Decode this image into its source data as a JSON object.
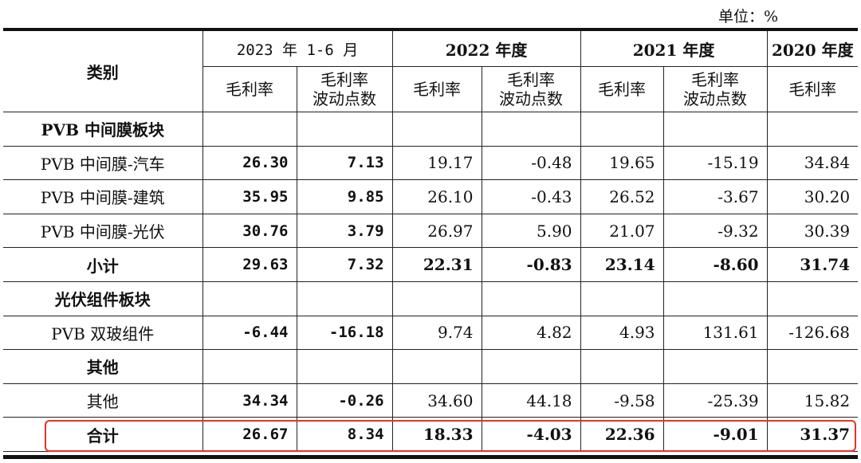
{
  "unit_label": "单位：%",
  "header": {
    "category": "类别",
    "periods": [
      "2023 年 1-6 月",
      "2022 年度",
      "2021 年度",
      "2020 年度"
    ],
    "gross_margin": "毛利率",
    "fluctuation": "毛利率\n波动点数"
  },
  "rows": {
    "r0": {
      "label": "PVB 中间膜板块"
    },
    "r1": {
      "label": "PVB 中间膜-汽车",
      "v": [
        "26.30",
        "7.13",
        "19.17",
        "-0.48",
        "19.65",
        "-15.19",
        "34.84"
      ]
    },
    "r2": {
      "label": "PVB 中间膜-建筑",
      "v": [
        "35.95",
        "9.85",
        "26.10",
        "-0.43",
        "26.52",
        "-3.67",
        "30.20"
      ]
    },
    "r3": {
      "label": "PVB 中间膜-光伏",
      "v": [
        "30.76",
        "3.79",
        "26.97",
        "5.90",
        "21.07",
        "-9.32",
        "30.39"
      ]
    },
    "r4": {
      "label": "小计",
      "v": [
        "29.63",
        "7.32",
        "22.31",
        "-0.83",
        "23.14",
        "-8.60",
        "31.74"
      ]
    },
    "r5": {
      "label": "光伏组件板块"
    },
    "r6": {
      "label": "PVB 双玻组件",
      "v": [
        "-6.44",
        "-16.18",
        "9.74",
        "4.82",
        "4.93",
        "131.61",
        "-126.68"
      ]
    },
    "r7": {
      "label": "其他"
    },
    "r8": {
      "label": "其他",
      "v": [
        "34.34",
        "-0.26",
        "34.60",
        "44.18",
        "-9.58",
        "-25.39",
        "15.82"
      ]
    },
    "r9": {
      "label": "合计",
      "v": [
        "26.67",
        "8.34",
        "18.33",
        "-4.03",
        "22.36",
        "-9.01",
        "31.37"
      ]
    }
  },
  "colors": {
    "highlight": "#e5332a"
  }
}
